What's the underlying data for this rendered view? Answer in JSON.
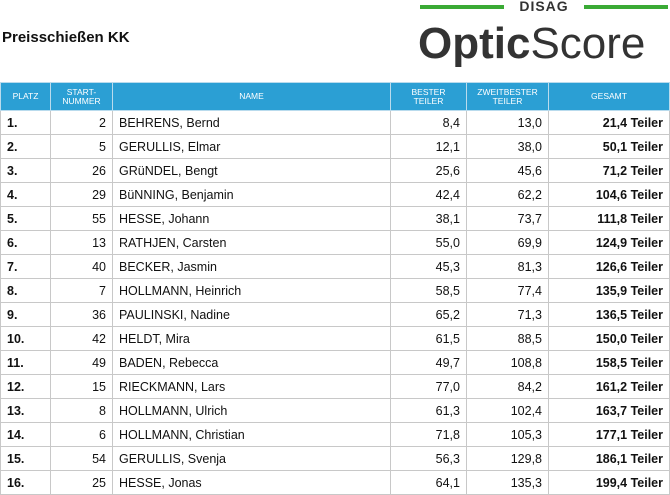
{
  "header": {
    "title": "Preisschießen KK",
    "logo_brand": "DISAG",
    "logo_part1": "Optic",
    "logo_part2": "Score"
  },
  "table": {
    "columns": [
      [
        "PLATZ"
      ],
      [
        "START-",
        "NUMMER"
      ],
      [
        "NAME"
      ],
      [
        "BESTER",
        "TEILER"
      ],
      [
        "ZWEITBESTER",
        "TEILER"
      ],
      [
        "GESAMT"
      ]
    ],
    "rows": [
      [
        "1.",
        "2",
        "BEHRENS, Bernd",
        "8,4",
        "13,0",
        "21,4 Teiler"
      ],
      [
        "2.",
        "5",
        "GERULLIS, Elmar",
        "12,1",
        "38,0",
        "50,1 Teiler"
      ],
      [
        "3.",
        "26",
        "GRüNDEL, Bengt",
        "25,6",
        "45,6",
        "71,2 Teiler"
      ],
      [
        "4.",
        "29",
        "BüNNING, Benjamin",
        "42,4",
        "62,2",
        "104,6 Teiler"
      ],
      [
        "5.",
        "55",
        "HESSE, Johann",
        "38,1",
        "73,7",
        "111,8 Teiler"
      ],
      [
        "6.",
        "13",
        "RATHJEN, Carsten",
        "55,0",
        "69,9",
        "124,9 Teiler"
      ],
      [
        "7.",
        "40",
        "BECKER, Jasmin",
        "45,3",
        "81,3",
        "126,6 Teiler"
      ],
      [
        "8.",
        "7",
        "HOLLMANN, Heinrich",
        "58,5",
        "77,4",
        "135,9 Teiler"
      ],
      [
        "9.",
        "36",
        "PAULINSKI, Nadine",
        "65,2",
        "71,3",
        "136,5 Teiler"
      ],
      [
        "10.",
        "42",
        "HELDT, Mira",
        "61,5",
        "88,5",
        "150,0 Teiler"
      ],
      [
        "11.",
        "49",
        "BADEN, Rebecca",
        "49,7",
        "108,8",
        "158,5 Teiler"
      ],
      [
        "12.",
        "15",
        "RIECKMANN, Lars",
        "77,0",
        "84,2",
        "161,2 Teiler"
      ],
      [
        "13.",
        "8",
        "HOLLMANN, Ulrich",
        "61,3",
        "102,4",
        "163,7 Teiler"
      ],
      [
        "14.",
        "6",
        "HOLLMANN, Christian",
        "71,8",
        "105,3",
        "177,1 Teiler"
      ],
      [
        "15.",
        "54",
        "GERULLIS, Svenja",
        "56,3",
        "129,8",
        "186,1 Teiler"
      ],
      [
        "16.",
        "25",
        "HESSE, Jonas",
        "64,1",
        "135,3",
        "199,4 Teiler"
      ]
    ]
  }
}
